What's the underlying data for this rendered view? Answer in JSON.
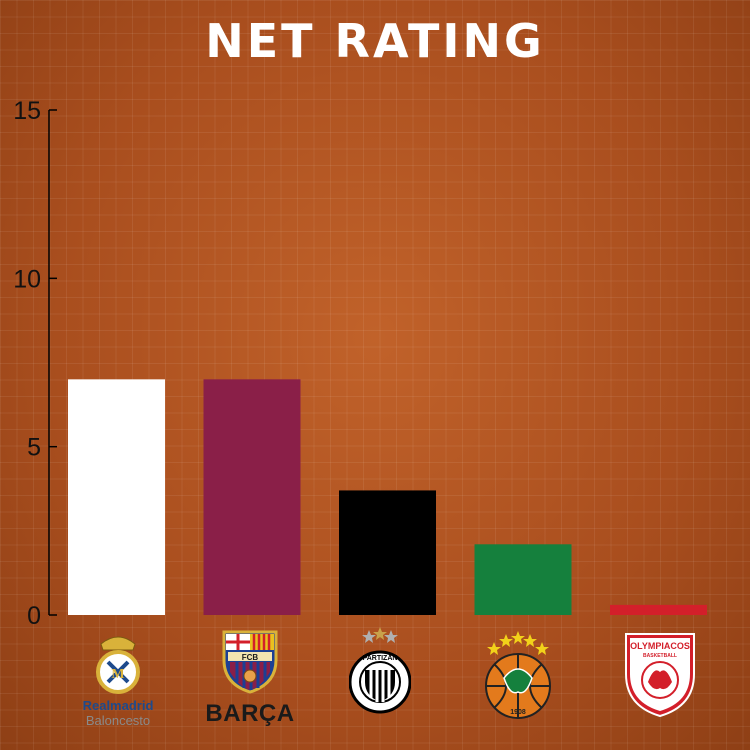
{
  "chart_data": {
    "type": "bar",
    "title": "NET RATING",
    "categories": [
      "Real Madrid",
      "Barça",
      "Partizan",
      "Panathinaikos",
      "Olympiacos"
    ],
    "values": [
      7.0,
      7.0,
      3.7,
      2.1,
      0.3
    ],
    "colors": [
      "#ffffff",
      "#8a1f48",
      "#000000",
      "#15803d",
      "#d31f2a"
    ],
    "ylim": [
      0,
      15
    ],
    "yticks": [
      0,
      5,
      10,
      15
    ],
    "xlabel": "",
    "ylabel": "",
    "grid": false,
    "legend": "none"
  },
  "logos": {
    "real_madrid": {
      "icon": "real-madrid-crest-icon",
      "line1": "Realmadrid",
      "line2": "Baloncesto"
    },
    "barca": {
      "icon": "fcb-crest-icon",
      "text": "BARÇA",
      "crest_letters": "FCB"
    },
    "partizan": {
      "icon": "partizan-crest-icon"
    },
    "panathinaikos": {
      "icon": "pao-crest-icon",
      "year": "1908"
    },
    "olympiacos": {
      "icon": "olympiacos-crest-icon",
      "line1": "OLYMPIACOS",
      "line2": "BASKETBALL"
    }
  }
}
